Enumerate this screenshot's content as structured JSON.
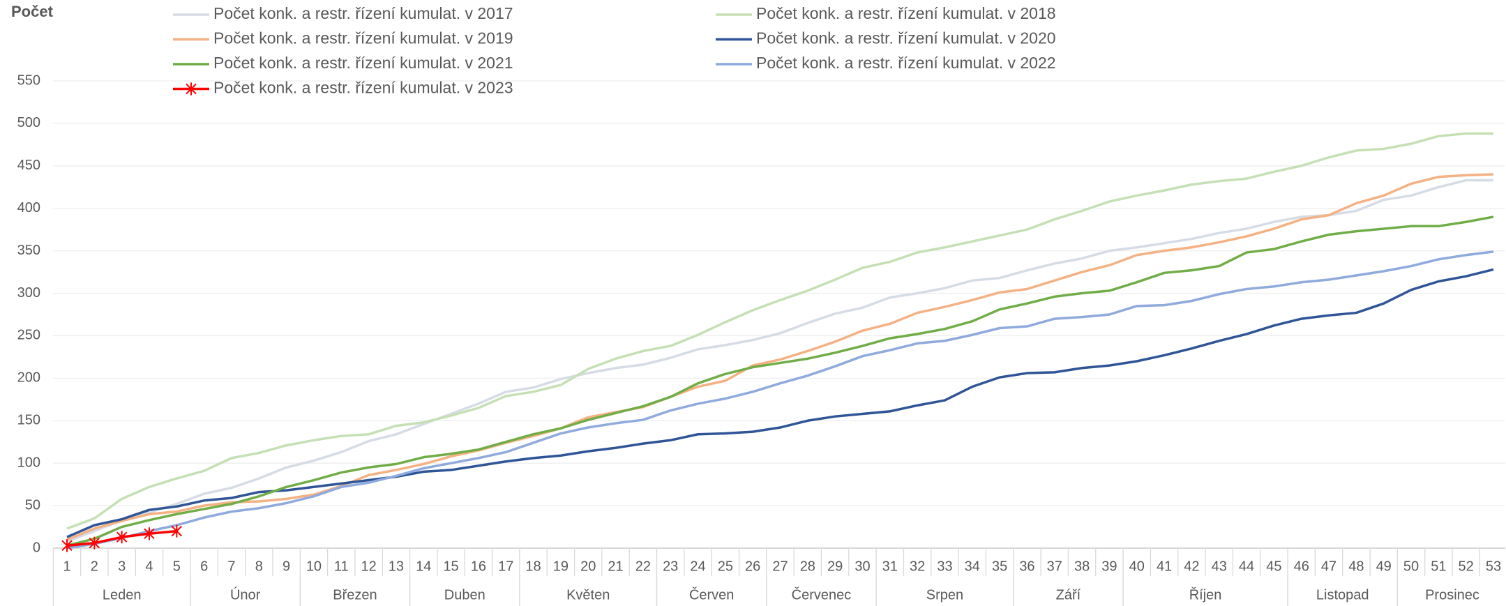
{
  "chart_data": {
    "type": "line",
    "y_axis_label": "Počet",
    "categories": [
      1,
      2,
      3,
      4,
      5,
      6,
      7,
      8,
      9,
      10,
      11,
      12,
      13,
      14,
      15,
      16,
      17,
      18,
      19,
      20,
      21,
      22,
      23,
      24,
      25,
      26,
      27,
      28,
      29,
      30,
      31,
      32,
      33,
      34,
      35,
      36,
      37,
      38,
      39,
      40,
      41,
      42,
      43,
      44,
      45,
      46,
      47,
      48,
      49,
      50,
      51,
      52,
      53
    ],
    "month_groups": [
      {
        "label": "Leden",
        "first": 1,
        "last": 5
      },
      {
        "label": "Únor",
        "first": 6,
        "last": 9
      },
      {
        "label": "Březen",
        "first": 10,
        "last": 13
      },
      {
        "label": "Duben",
        "first": 14,
        "last": 17
      },
      {
        "label": "Květen",
        "first": 18,
        "last": 22
      },
      {
        "label": "Červen",
        "first": 23,
        "last": 26
      },
      {
        "label": "Červenec",
        "first": 27,
        "last": 30
      },
      {
        "label": "Srpen",
        "first": 31,
        "last": 35
      },
      {
        "label": "Září",
        "first": 36,
        "last": 39
      },
      {
        "label": "Říjen",
        "first": 40,
        "last": 45
      },
      {
        "label": "Listopad",
        "first": 46,
        "last": 49
      },
      {
        "label": "Prosinec",
        "first": 50,
        "last": 53
      }
    ],
    "ylim": [
      0,
      550
    ],
    "yticks": [
      0,
      50,
      100,
      150,
      200,
      250,
      300,
      350,
      400,
      450,
      500,
      550
    ],
    "grid": true,
    "series": [
      {
        "name": "Počet konk. a restr. řízení kumulat. v 2017",
        "color": "#d6dce5",
        "values": [
          8,
          20,
          33,
          42,
          52,
          64,
          71,
          82,
          95,
          103,
          113,
          126,
          134,
          146,
          158,
          170,
          184,
          189,
          199,
          206,
          212,
          216,
          224,
          234,
          239,
          245,
          253,
          265,
          276,
          283,
          295,
          300,
          306,
          315,
          318,
          327,
          335,
          341,
          350,
          354,
          359,
          364,
          371,
          376,
          384,
          390,
          392,
          397,
          410,
          415,
          425,
          433,
          433
        ]
      },
      {
        "name": "Počet konk. a restr. řízení kumulat. v 2018",
        "color": "#c5e0b4",
        "values": [
          23,
          35,
          58,
          72,
          82,
          91,
          106,
          112,
          121,
          127,
          132,
          134,
          144,
          148,
          156,
          165,
          179,
          184,
          192,
          211,
          223,
          232,
          238,
          251,
          266,
          280,
          292,
          303,
          316,
          330,
          337,
          348,
          354,
          361,
          368,
          375,
          387,
          397,
          408,
          415,
          421,
          428,
          432,
          435,
          443,
          450,
          460,
          468,
          470,
          476,
          485,
          488,
          488
        ]
      },
      {
        "name": "Počet konk. a restr. řízení kumulat. v 2019",
        "color": "#f4b183",
        "values": [
          10,
          23,
          32,
          40,
          43,
          50,
          54,
          55,
          58,
          63,
          73,
          86,
          92,
          99,
          108,
          115,
          124,
          132,
          141,
          154,
          160,
          166,
          178,
          190,
          197,
          215,
          222,
          232,
          243,
          256,
          264,
          277,
          284,
          292,
          301,
          305,
          315,
          325,
          333,
          345,
          350,
          354,
          360,
          367,
          376,
          387,
          392,
          406,
          415,
          429,
          437,
          439,
          440
        ]
      },
      {
        "name": "Počet konk. a restr. řízení kumulat. v 2020",
        "color": "#2f5597",
        "values": [
          13,
          27,
          34,
          45,
          49,
          56,
          59,
          66,
          68,
          72,
          76,
          80,
          84,
          90,
          92,
          97,
          102,
          106,
          109,
          114,
          118,
          123,
          127,
          134,
          135,
          137,
          142,
          150,
          155,
          158,
          161,
          168,
          174,
          190,
          201,
          206,
          207,
          212,
          215,
          220,
          227,
          235,
          244,
          252,
          262,
          270,
          274,
          277,
          288,
          304,
          314,
          320,
          328
        ]
      },
      {
        "name": "Počet konk. a restr. řízení kumulat. v 2021",
        "color": "#70ad47",
        "values": [
          3,
          11,
          25,
          33,
          40,
          46,
          52,
          61,
          72,
          80,
          89,
          95,
          99,
          107,
          111,
          116,
          125,
          134,
          141,
          151,
          159,
          167,
          178,
          194,
          205,
          213,
          218,
          223,
          230,
          238,
          247,
          252,
          258,
          267,
          281,
          288,
          296,
          300,
          303,
          313,
          324,
          327,
          332,
          348,
          352,
          361,
          369,
          373,
          376,
          379,
          379,
          384,
          390
        ]
      },
      {
        "name": "Počet konk. a restr. řízení kumulat. v 2022",
        "color": "#8faadc",
        "values": [
          0,
          5,
          12,
          20,
          27,
          36,
          43,
          47,
          53,
          61,
          72,
          77,
          85,
          94,
          100,
          106,
          113,
          124,
          135,
          142,
          147,
          151,
          162,
          170,
          176,
          184,
          194,
          203,
          214,
          226,
          233,
          241,
          244,
          251,
          259,
          261,
          270,
          272,
          275,
          285,
          286,
          291,
          299,
          305,
          308,
          313,
          316,
          321,
          326,
          332,
          340,
          345,
          349
        ]
      },
      {
        "name": "Počet konk. a restr. řízení kumulat. v 2023",
        "color": "#ff0000",
        "marker": true,
        "values": [
          3,
          6,
          13,
          17,
          20,
          null,
          null,
          null,
          null,
          null,
          null,
          null,
          null,
          null,
          null,
          null,
          null,
          null,
          null,
          null,
          null,
          null,
          null,
          null,
          null,
          null,
          null,
          null,
          null,
          null,
          null,
          null,
          null,
          null,
          null,
          null,
          null,
          null,
          null,
          null,
          null,
          null,
          null,
          null,
          null,
          null,
          null,
          null,
          null,
          null,
          null,
          null,
          null
        ]
      }
    ]
  }
}
